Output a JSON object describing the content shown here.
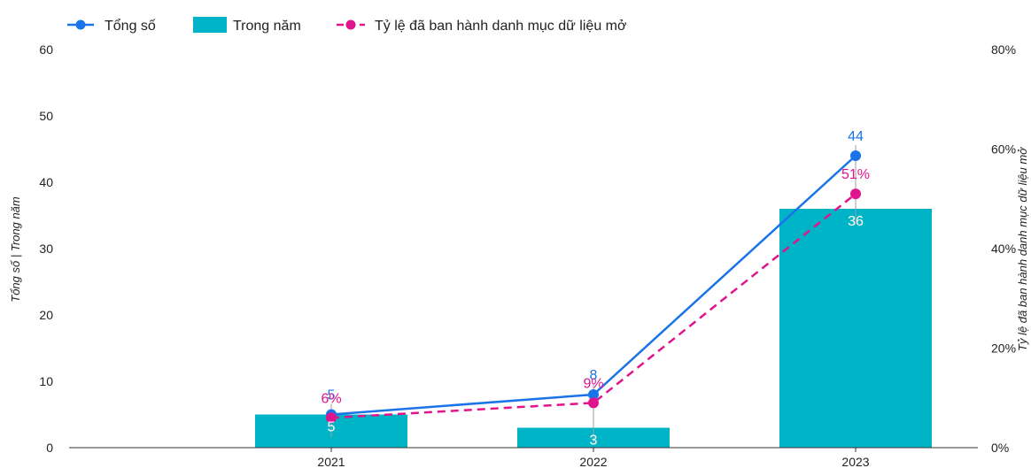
{
  "chart_data": {
    "type": "bar",
    "categories": [
      "2021",
      "2022",
      "2023"
    ],
    "series": [
      {
        "name": "Tổng số",
        "type": "line",
        "axis": "left",
        "values": [
          5,
          8,
          44
        ],
        "labels": [
          "5",
          "8",
          "44"
        ]
      },
      {
        "name": "Trong năm",
        "type": "bar",
        "axis": "left",
        "values": [
          5,
          3,
          36
        ],
        "labels": [
          "5",
          "3",
          "36"
        ]
      },
      {
        "name": "Tỷ lệ đã ban hành danh mục dữ liệu mở",
        "type": "line",
        "style": "dashed",
        "axis": "right",
        "values": [
          6,
          9,
          51
        ],
        "labels": [
          "6%",
          "9%",
          "51%"
        ]
      }
    ],
    "ylabel": "Tổng số | Trong năm",
    "y2label": "Tỷ lệ đã ban hành danh mục dữ liệu mở",
    "ylim": [
      0,
      60
    ],
    "y2lim": [
      0,
      80
    ],
    "yticks": [
      "0",
      "10",
      "20",
      "30",
      "40",
      "50",
      "60"
    ],
    "y2ticks": [
      "0%",
      "20%",
      "40%",
      "60%",
      "80%"
    ],
    "legend_position": "top-left",
    "grid": false,
    "colors": {
      "total": "#1a73e8",
      "year": "#00b4c8",
      "rate": "#e0148c",
      "axis": "#333333"
    }
  }
}
